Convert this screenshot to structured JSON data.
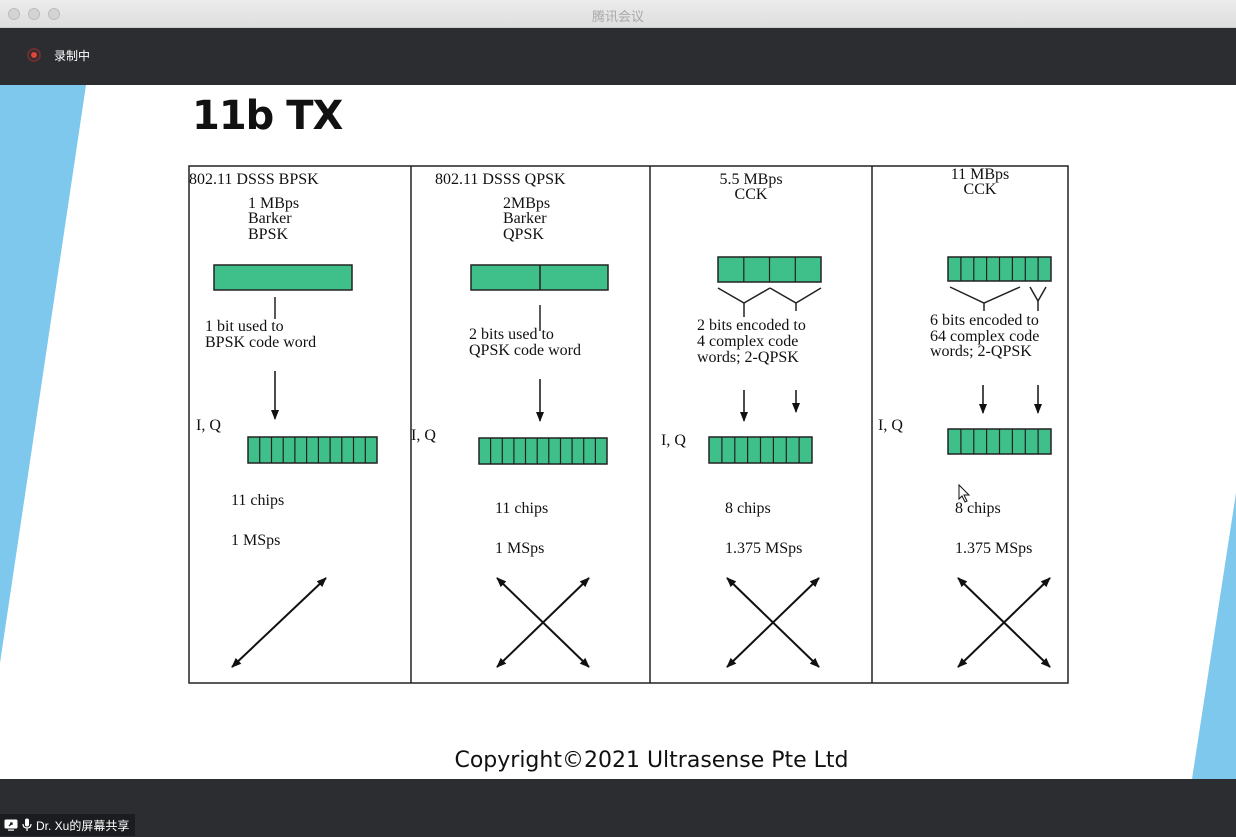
{
  "window": {
    "title": "腾讯会议"
  },
  "topbar": {
    "recording_label": "录制中"
  },
  "slide": {
    "title": "11b TX",
    "copyright": "Copyright©2021 Ultrasense Pte Ltd",
    "columns": [
      {
        "header": "802.11 DSSS BPSK",
        "sub": [
          "1 MBps",
          "Barker",
          "BPSK"
        ],
        "note": [
          "1 bit used to",
          "BPSK code word"
        ],
        "iq": "I, Q",
        "chips": "11 chips",
        "rate": "1 MSps"
      },
      {
        "header": "802.11 DSSS QPSK",
        "sub": [
          "2MBps",
          "Barker",
          "QPSK"
        ],
        "note": [
          "2 bits used to",
          "QPSK code word"
        ],
        "iq": "I, Q",
        "chips": "11 chips",
        "rate": "1 MSps"
      },
      {
        "header": "5.5 MBps",
        "sub": [
          "CCK"
        ],
        "note": [
          "2 bits encoded to",
          "4 complex code",
          "words; 2-QPSK"
        ],
        "iq": "I, Q",
        "chips": "8 chips",
        "rate": "1.375 MSps"
      },
      {
        "header": "11 MBps",
        "sub": [
          "CCK"
        ],
        "note": [
          "6 bits encoded to",
          "64 complex code",
          "words; 2-QPSK"
        ],
        "iq": "I, Q",
        "chips": "8 chips",
        "rate": "1.375 MSps"
      }
    ]
  },
  "share_badge": {
    "label": "Dr. Xu的屏幕共享"
  },
  "colors": {
    "block_fill": "#3fc08a",
    "background_accent": "#7ec8ee"
  }
}
